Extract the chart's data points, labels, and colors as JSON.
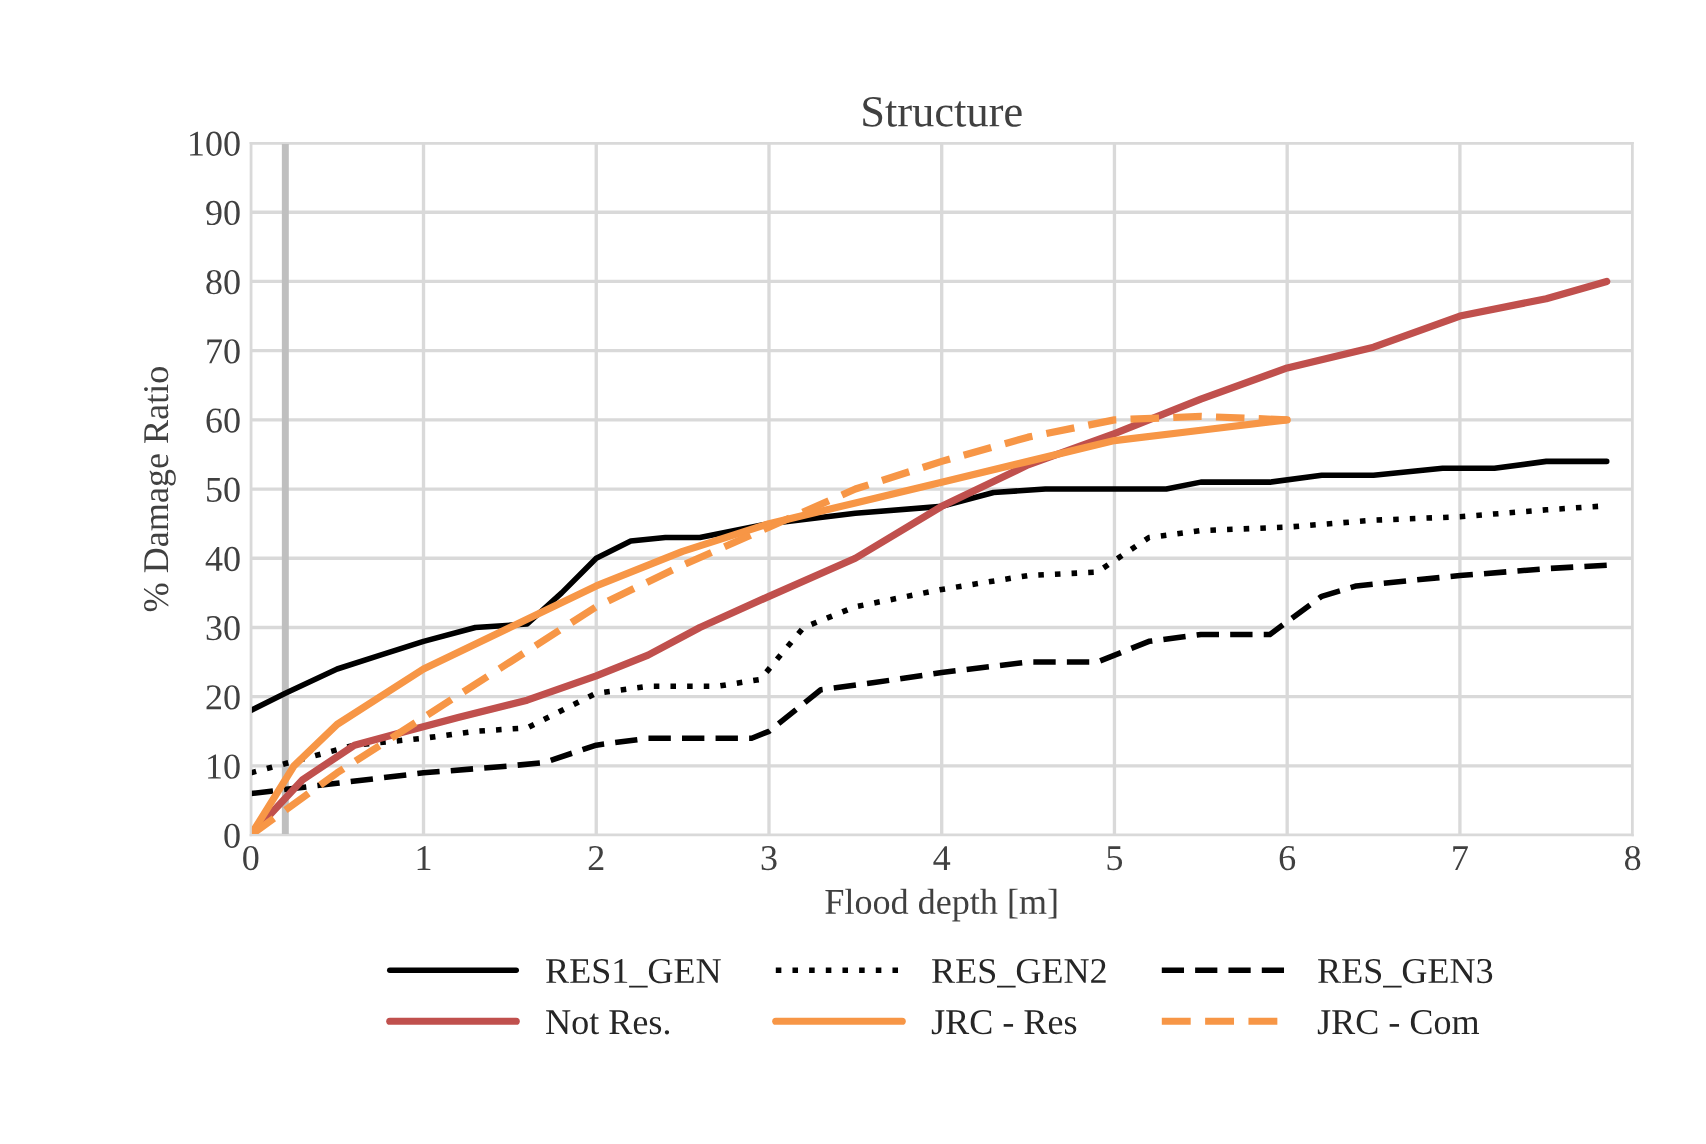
{
  "chart_data": {
    "type": "line",
    "title": "Structure",
    "xlabel": "Flood depth [m]",
    "ylabel": "% Damage Ratio",
    "xlim": [
      0,
      8
    ],
    "xticks": [
      0,
      1,
      2,
      3,
      4,
      5,
      6,
      7,
      8
    ],
    "ylim": [
      0,
      100
    ],
    "yticks": [
      0,
      10,
      20,
      30,
      40,
      50,
      60,
      70,
      80,
      90,
      100
    ],
    "grid": true,
    "legend": "bottom",
    "marker": "none",
    "ref_lines": [
      {
        "axis": "x",
        "value": 0.2,
        "color": "#bfbfbf"
      }
    ],
    "series": [
      {
        "name": "RES1_GEN",
        "color": "#000000",
        "line_style": "solid",
        "x": [
          0,
          0.2,
          0.5,
          0.75,
          1,
          1.3,
          1.6,
          1.8,
          2,
          2.2,
          2.4,
          2.6,
          3,
          3.5,
          4,
          4.3,
          4.6,
          5,
          5.3,
          5.5,
          5.9,
          6.2,
          6.5,
          6.9,
          7.2,
          7.5,
          7.85
        ],
        "values": [
          18,
          20.5,
          24,
          26,
          28,
          30,
          30.5,
          35,
          40,
          42.5,
          43,
          43,
          45,
          46.5,
          47.5,
          49.5,
          50,
          50,
          50,
          51,
          51,
          52,
          52,
          53,
          53,
          54,
          54
        ]
      },
      {
        "name": "RES_GEN2",
        "color": "#000000",
        "line_style": "dotted",
        "x": [
          0,
          0.3,
          0.6,
          1,
          1.3,
          1.6,
          1.8,
          2,
          2.3,
          2.7,
          2.95,
          3.2,
          3.5,
          4,
          4.5,
          4.9,
          5.2,
          5.5,
          6,
          6.5,
          7,
          7.5,
          7.8
        ],
        "values": [
          9,
          11,
          13,
          14,
          15,
          15.5,
          18,
          20.5,
          21.5,
          21.5,
          22.5,
          30,
          33,
          35.5,
          37.5,
          38,
          43,
          44,
          44.5,
          45.5,
          46,
          47,
          47.5
        ]
      },
      {
        "name": "RES_GEN3",
        "color": "#000000",
        "line_style": "dashed",
        "x": [
          0,
          0.5,
          1,
          1.5,
          1.7,
          2,
          2.3,
          2.9,
          3,
          3.3,
          3.6,
          4,
          4.5,
          4.9,
          5.2,
          5.5,
          5.9,
          6.2,
          6.4,
          7,
          7.5,
          7.85
        ],
        "values": [
          6,
          7.5,
          9,
          10,
          10.5,
          13,
          14,
          14,
          15,
          21,
          22,
          23.5,
          25,
          25,
          28,
          29,
          29,
          34.5,
          36,
          37.5,
          38.5,
          39
        ]
      },
      {
        "name": "Not Res.",
        "color": "#c0504d",
        "line_style": "solid",
        "x": [
          0,
          0.3,
          0.6,
          0.9,
          1.2,
          1.6,
          2,
          2.3,
          2.6,
          3,
          3.5,
          4,
          4.5,
          5,
          5.5,
          6,
          6.5,
          7,
          7.5,
          7.85
        ],
        "values": [
          0,
          8,
          13,
          15,
          17,
          19.5,
          23,
          26,
          30,
          34.5,
          40,
          47.5,
          53.5,
          58,
          63,
          67.5,
          70.5,
          75,
          77.5,
          80
        ]
      },
      {
        "name": "JRC - Res",
        "color": "#f79646",
        "line_style": "solid",
        "x": [
          0,
          0.25,
          0.5,
          1,
          1.5,
          2,
          2.5,
          3,
          3.5,
          4,
          4.5,
          5,
          5.5,
          6
        ],
        "values": [
          0,
          10,
          16,
          24,
          30,
          36,
          41,
          45,
          48,
          51,
          54,
          57,
          58.5,
          60
        ]
      },
      {
        "name": "JRC - Com",
        "color": "#f79646",
        "line_style": "dashed",
        "x": [
          0,
          0.5,
          1,
          1.5,
          2,
          2.5,
          3,
          3.5,
          4,
          4.5,
          5,
          5.5,
          6
        ],
        "values": [
          0,
          9,
          17,
          25,
          33,
          39,
          44.5,
          50,
          54,
          57.5,
          60,
          60.5,
          60
        ]
      }
    ]
  }
}
